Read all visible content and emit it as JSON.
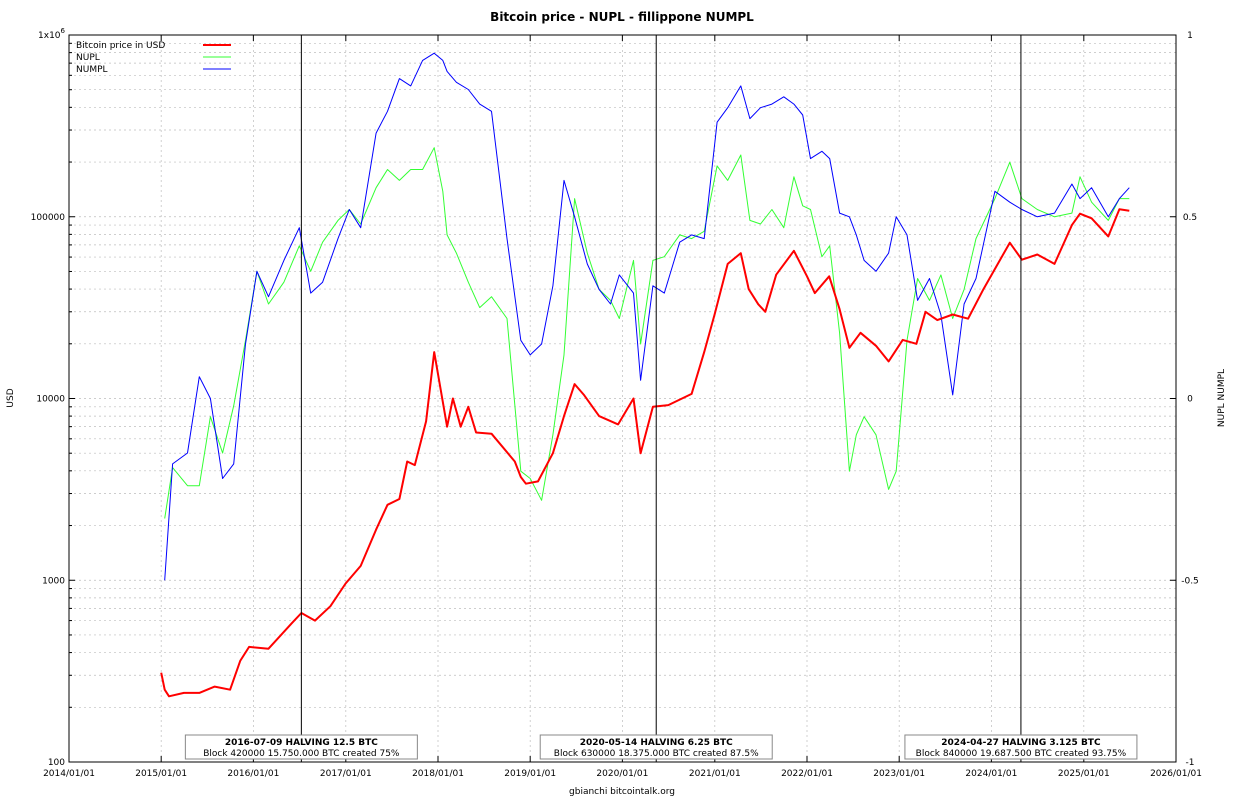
{
  "chart_data": {
    "type": "line",
    "title": "Bitcoin price - NUPL - fillippone NUMPL",
    "ylabel": "USD",
    "y2label": "NUPL NUMPL",
    "footer": "gbianchi bitcointalk.org",
    "y_scale": "log",
    "ylim": [
      100,
      1000000
    ],
    "y2lim": [
      -1,
      1
    ],
    "xlim": [
      "2014-01-01",
      "2026-01-01"
    ],
    "grid": true,
    "legend_position": "top-left",
    "x_tick_labels": [
      "2014/01/01",
      "2015/01/01",
      "2016/01/01",
      "2017/01/01",
      "2018/01/01",
      "2019/01/01",
      "2020/01/01",
      "2021/01/01",
      "2022/01/01",
      "2023/01/01",
      "2024/01/01",
      "2025/01/01",
      "2026/01/01"
    ],
    "y_tick_labels": [
      {
        "value": 1000000,
        "base": "1x10",
        "exp": "6"
      },
      {
        "value": 100000,
        "label": "100000"
      },
      {
        "value": 10000,
        "label": "10000"
      },
      {
        "value": 1000,
        "label": "1000"
      },
      {
        "value": 100,
        "label": "100"
      }
    ],
    "y2_tick_labels": [
      {
        "value": 1,
        "label": "1"
      },
      {
        "value": 0.5,
        "label": "0.5"
      },
      {
        "value": 0,
        "label": "0"
      },
      {
        "value": -0.5,
        "label": "-0.5"
      },
      {
        "value": -1,
        "label": "-1"
      }
    ],
    "series": [
      {
        "name": "Bitcoin price in USD",
        "color": "#ff0000",
        "axis": "y",
        "x": [
          "2015-01-01",
          "2015-01-15",
          "2015-02-01",
          "2015-04-01",
          "2015-06-01",
          "2015-08-01",
          "2015-10-01",
          "2015-11-10",
          "2015-12-15",
          "2016-03-01",
          "2016-06-01",
          "2016-07-09",
          "2016-09-01",
          "2016-11-01",
          "2016-12-31",
          "2017-03-01",
          "2017-05-01",
          "2017-06-15",
          "2017-08-01",
          "2017-09-01",
          "2017-10-01",
          "2017-11-15",
          "2017-12-17",
          "2018-02-06",
          "2018-03-01",
          "2018-04-01",
          "2018-05-01",
          "2018-06-01",
          "2018-08-01",
          "2018-11-01",
          "2018-11-25",
          "2018-12-15",
          "2019-02-01",
          "2019-04-01",
          "2019-05-15",
          "2019-06-26",
          "2019-08-01",
          "2019-10-01",
          "2019-12-15",
          "2020-02-14",
          "2020-03-13",
          "2020-05-01",
          "2020-07-01",
          "2020-10-01",
          "2020-11-20",
          "2020-12-31",
          "2021-02-21",
          "2021-04-14",
          "2021-05-15",
          "2021-06-22",
          "2021-07-20",
          "2021-09-01",
          "2021-11-10",
          "2022-01-01",
          "2022-02-01",
          "2022-03-30",
          "2022-05-10",
          "2022-06-18",
          "2022-08-01",
          "2022-10-01",
          "2022-11-20",
          "2023-01-15",
          "2023-03-10",
          "2023-04-15",
          "2023-06-01",
          "2023-08-01",
          "2023-10-01",
          "2023-12-01",
          "2024-03-14",
          "2024-05-01",
          "2024-07-01",
          "2024-09-07",
          "2024-11-15",
          "2024-12-17",
          "2025-02-01",
          "2025-04-08",
          "2025-05-22",
          "2025-06-30"
        ],
        "y": [
          310,
          250,
          230,
          240,
          240,
          260,
          250,
          360,
          430,
          420,
          580,
          660,
          600,
          720,
          960,
          1200,
          1900,
          2600,
          2800,
          4500,
          4300,
          7500,
          18000,
          7000,
          10000,
          7000,
          9000,
          6500,
          6400,
          4500,
          3700,
          3400,
          3500,
          5000,
          8000,
          12000,
          10500,
          8000,
          7200,
          10000,
          5000,
          9000,
          9200,
          10600,
          18000,
          29000,
          55000,
          63000,
          40000,
          33000,
          30000,
          48000,
          65000,
          47000,
          38000,
          47000,
          31000,
          19000,
          23000,
          19500,
          16000,
          21000,
          20000,
          30000,
          27000,
          29000,
          27500,
          40000,
          72000,
          58000,
          62000,
          55000,
          90000,
          104000,
          98000,
          78000,
          110000,
          108000
        ]
      },
      {
        "name": "NUPL",
        "color": "#33ff33",
        "axis": "y2",
        "x": [
          "2015-01-15",
          "2015-02-15",
          "2015-04-15",
          "2015-06-01",
          "2015-07-15",
          "2015-09-01",
          "2015-10-15",
          "2015-12-01",
          "2016-01-15",
          "2016-03-01",
          "2016-05-01",
          "2016-07-01",
          "2016-08-15",
          "2016-10-01",
          "2016-12-01",
          "2017-01-15",
          "2017-03-01",
          "2017-05-01",
          "2017-06-15",
          "2017-08-01",
          "2017-09-15",
          "2017-11-01",
          "2017-12-17",
          "2018-01-20",
          "2018-02-06",
          "2018-03-15",
          "2018-05-01",
          "2018-06-15",
          "2018-08-01",
          "2018-10-01",
          "2018-11-25",
          "2019-01-01",
          "2019-02-15",
          "2019-04-01",
          "2019-05-15",
          "2019-06-26",
          "2019-08-15",
          "2019-10-01",
          "2019-11-15",
          "2019-12-20",
          "2020-02-14",
          "2020-03-13",
          "2020-05-01",
          "2020-06-15",
          "2020-08-15",
          "2020-10-01",
          "2020-11-20",
          "2021-01-10",
          "2021-02-21",
          "2021-04-14",
          "2021-05-20",
          "2021-07-01",
          "2021-08-15",
          "2021-10-01",
          "2021-11-10",
          "2021-12-15",
          "2022-01-15",
          "2022-03-01",
          "2022-04-01",
          "2022-05-10",
          "2022-06-18",
          "2022-07-15",
          "2022-08-15",
          "2022-10-01",
          "2022-11-20",
          "2022-12-20",
          "2023-02-01",
          "2023-03-15",
          "2023-05-01",
          "2023-06-15",
          "2023-08-01",
          "2023-09-15",
          "2023-11-01",
          "2024-01-15",
          "2024-03-14",
          "2024-05-01",
          "2024-07-01",
          "2024-09-07",
          "2024-11-15",
          "2024-12-17",
          "2025-02-01",
          "2025-04-08",
          "2025-05-22",
          "2025-06-30"
        ],
        "y": [
          -0.33,
          -0.19,
          -0.24,
          -0.24,
          -0.05,
          -0.15,
          -0.02,
          0.16,
          0.35,
          0.26,
          0.32,
          0.42,
          0.35,
          0.43,
          0.49,
          0.52,
          0.48,
          0.58,
          0.63,
          0.6,
          0.63,
          0.63,
          0.69,
          0.57,
          0.45,
          0.4,
          0.32,
          0.25,
          0.28,
          0.22,
          -0.2,
          -0.22,
          -0.28,
          -0.1,
          0.12,
          0.55,
          0.4,
          0.3,
          0.27,
          0.22,
          0.38,
          0.15,
          0.38,
          0.39,
          0.45,
          0.44,
          0.46,
          0.64,
          0.6,
          0.67,
          0.49,
          0.48,
          0.52,
          0.47,
          0.61,
          0.53,
          0.52,
          0.39,
          0.42,
          0.18,
          -0.2,
          -0.1,
          -0.05,
          -0.1,
          -0.25,
          -0.2,
          0.16,
          0.33,
          0.27,
          0.34,
          0.22,
          0.3,
          0.44,
          0.55,
          0.65,
          0.55,
          0.52,
          0.5,
          0.51,
          0.61,
          0.54,
          0.49,
          0.55,
          0.55
        ]
      },
      {
        "name": "NUMPL",
        "color": "#0000ff",
        "axis": "y2",
        "x": [
          "2015-01-15",
          "2015-02-15",
          "2015-04-15",
          "2015-06-01",
          "2015-07-15",
          "2015-09-01",
          "2015-10-15",
          "2015-12-01",
          "2016-01-15",
          "2016-03-01",
          "2016-05-01",
          "2016-07-01",
          "2016-08-15",
          "2016-10-01",
          "2016-12-01",
          "2017-01-15",
          "2017-03-01",
          "2017-05-01",
          "2017-06-15",
          "2017-08-01",
          "2017-09-15",
          "2017-11-01",
          "2017-12-17",
          "2018-01-20",
          "2018-02-06",
          "2018-03-15",
          "2018-05-01",
          "2018-06-15",
          "2018-08-01",
          "2018-10-01",
          "2018-11-25",
          "2019-01-01",
          "2019-02-15",
          "2019-04-01",
          "2019-05-15",
          "2019-06-26",
          "2019-08-15",
          "2019-10-01",
          "2019-11-15",
          "2019-12-20",
          "2020-02-14",
          "2020-03-13",
          "2020-05-01",
          "2020-06-15",
          "2020-08-15",
          "2020-10-01",
          "2020-11-20",
          "2021-01-10",
          "2021-02-21",
          "2021-04-14",
          "2021-05-20",
          "2021-07-01",
          "2021-08-15",
          "2021-10-01",
          "2021-11-10",
          "2021-12-15",
          "2022-01-15",
          "2022-03-01",
          "2022-04-01",
          "2022-05-10",
          "2022-06-18",
          "2022-07-15",
          "2022-08-15",
          "2022-10-01",
          "2022-11-20",
          "2022-12-20",
          "2023-02-01",
          "2023-03-15",
          "2023-05-01",
          "2023-06-15",
          "2023-08-01",
          "2023-09-15",
          "2023-11-01",
          "2024-01-15",
          "2024-03-14",
          "2024-05-01",
          "2024-07-01",
          "2024-09-07",
          "2024-11-15",
          "2024-12-17",
          "2025-02-01",
          "2025-04-08",
          "2025-05-22",
          "2025-06-30"
        ],
        "y": [
          -0.5,
          -0.18,
          -0.15,
          0.06,
          0.0,
          -0.22,
          -0.18,
          0.15,
          0.35,
          0.28,
          0.38,
          0.47,
          0.29,
          0.32,
          0.44,
          0.52,
          0.47,
          0.73,
          0.79,
          0.88,
          0.86,
          0.93,
          0.95,
          0.93,
          0.9,
          0.87,
          0.85,
          0.81,
          0.79,
          0.44,
          0.16,
          0.12,
          0.15,
          0.31,
          0.6,
          0.5,
          0.37,
          0.3,
          0.26,
          0.34,
          0.29,
          0.05,
          0.31,
          0.29,
          0.43,
          0.45,
          0.44,
          0.76,
          0.8,
          0.86,
          0.77,
          0.8,
          0.81,
          0.83,
          0.81,
          0.78,
          0.66,
          0.68,
          0.66,
          0.51,
          0.5,
          0.45,
          0.38,
          0.35,
          0.4,
          0.5,
          0.45,
          0.27,
          0.33,
          0.23,
          0.01,
          0.26,
          0.33,
          0.57,
          0.54,
          0.52,
          0.5,
          0.51,
          0.59,
          0.55,
          0.58,
          0.5,
          0.55,
          0.58
        ]
      }
    ],
    "vertical_lines": [
      {
        "x": "2016-07-09",
        "title": "2016-07-09 HALVING 12.5 BTC",
        "subtitle": "Block 420000 15.750.000 BTC created 75%"
      },
      {
        "x": "2020-05-14",
        "title": "2020-05-14 HALVING 6.25 BTC",
        "subtitle": "Block 630000 18.375.000 BTC created 87.5%"
      },
      {
        "x": "2024-04-27",
        "title": "2024-04-27 HALVING 3.125 BTC",
        "subtitle": "Block 840000 19.687.500 BTC created 93.75%"
      }
    ]
  }
}
